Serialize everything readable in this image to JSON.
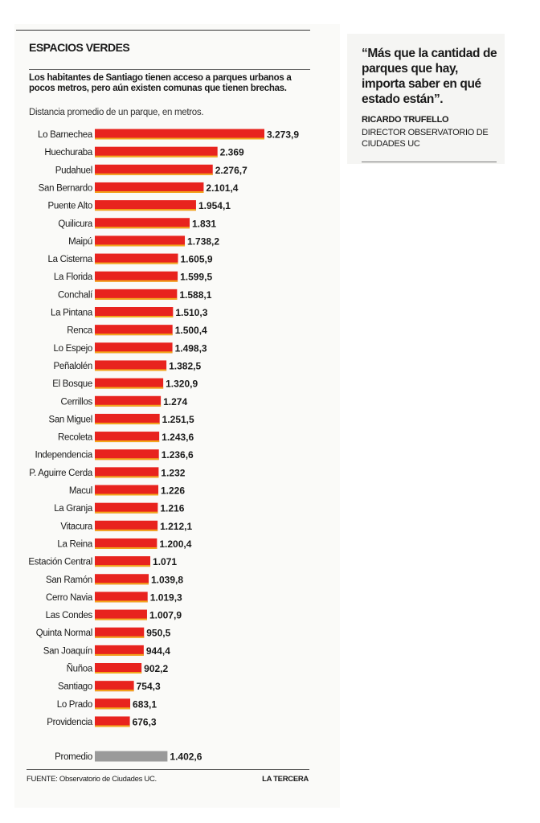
{
  "header": {
    "title": "ESPACIOS VERDES",
    "subtitle": "Los habitantes de Santiago tienen acceso a parques urbanos a pocos metros, pero aún existen comunas que tienen brechas."
  },
  "quote": {
    "text": "“Más que la cantidad de parques que hay, importa saber en qué estado están”.",
    "author": "RICARDO TRUFELLO",
    "role": "DIRECTOR OBSERVATORIO DE CIUDADES UC"
  },
  "footer": {
    "source": "FUENTE: Observatorio de Ciudades UC.",
    "brand": "LA TERCERA"
  },
  "colors": {
    "bar": "#e8231e",
    "bar_edge": "#f2a81c",
    "average_bar": "#9a9a9a"
  },
  "chart_data": {
    "type": "bar",
    "orientation": "horizontal",
    "title": "Distancia promedio de un parque, en metros.",
    "categories": [
      "Lo Barnechea",
      "Huechuraba",
      "Pudahuel",
      "San Bernardo",
      "Puente Alto",
      "Quilicura",
      "Maipú",
      "La Cisterna",
      "La Florida",
      "Conchalí",
      "La Pintana",
      "Renca",
      "Lo Espejo",
      "Peñalolén",
      "El Bosque",
      "Cerrillos",
      "San Miguel",
      "Recoleta",
      "Independencia",
      "P. Aguirre Cerda",
      "Macul",
      "La Granja",
      "Vitacura",
      "La Reina",
      "Estación Central",
      "San Ramón",
      "Cerro Navia",
      "Las Condes",
      "Quinta Normal",
      "San Joaquín",
      "Ñuñoa",
      "Santiago",
      "Lo Prado",
      "Providencia"
    ],
    "values": [
      3273.9,
      2369,
      2276.7,
      2101.4,
      1954.1,
      1831,
      1738.2,
      1605.9,
      1599.5,
      1588.1,
      1510.3,
      1500.4,
      1498.3,
      1382.5,
      1320.9,
      1274,
      1251.5,
      1243.6,
      1236.6,
      1232,
      1226,
      1216,
      1212.1,
      1200.4,
      1071,
      1039.8,
      1019.3,
      1007.9,
      950.5,
      944.4,
      902.2,
      754.3,
      683.1,
      676.3
    ],
    "value_labels": [
      "3.273,9",
      "2.369",
      "2.276,7",
      "2.101,4",
      "1.954,1",
      "1.831",
      "1.738,2",
      "1.605,9",
      "1.599,5",
      "1.588,1",
      "1.510,3",
      "1.500,4",
      "1.498,3",
      "1.382,5",
      "1.320,9",
      "1.274",
      "1.251,5",
      "1.243,6",
      "1.236,6",
      "1.232",
      "1.226",
      "1.216",
      "1.212,1",
      "1.200,4",
      "1.071",
      "1.039,8",
      "1.019,3",
      "1.007,9",
      "950,5",
      "944,4",
      "902,2",
      "754,3",
      "683,1",
      "676,3"
    ],
    "average": {
      "label": "Promedio",
      "value": 1402.6,
      "value_label": "1.402,6"
    },
    "grid": false,
    "legend": "none"
  }
}
